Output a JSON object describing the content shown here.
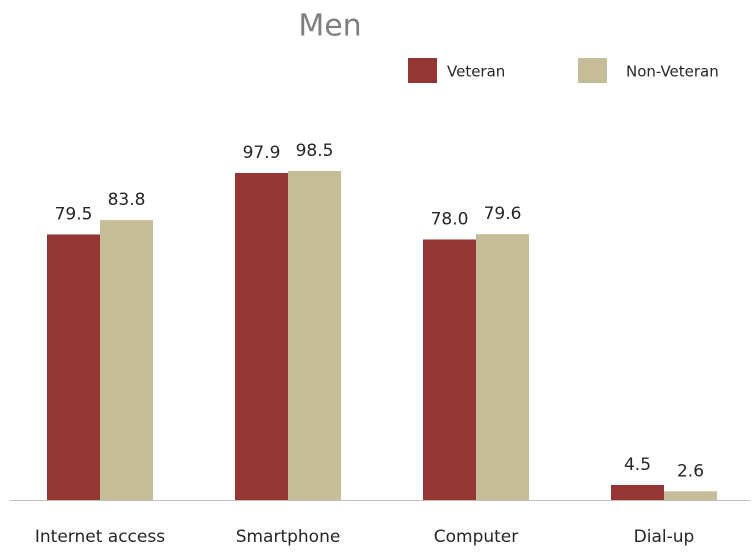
{
  "chart_data": {
    "type": "bar",
    "title": "Men",
    "categories": [
      "Internet access",
      "Smartphone",
      "Computer",
      "Dial-up"
    ],
    "series": [
      {
        "name": "Veteran",
        "color": "#943634",
        "values": [
          79.5,
          97.9,
          78.0,
          4.5
        ],
        "value_labels": [
          "79.5",
          "97.9",
          "78.0",
          "4.5"
        ]
      },
      {
        "name": "Non-Veteran",
        "color": "#c4bd97",
        "values": [
          83.8,
          98.5,
          79.6,
          2.6
        ],
        "value_labels": [
          "83.8",
          "98.5",
          "79.6",
          "2.6"
        ]
      }
    ],
    "legend": "top-right"
  }
}
